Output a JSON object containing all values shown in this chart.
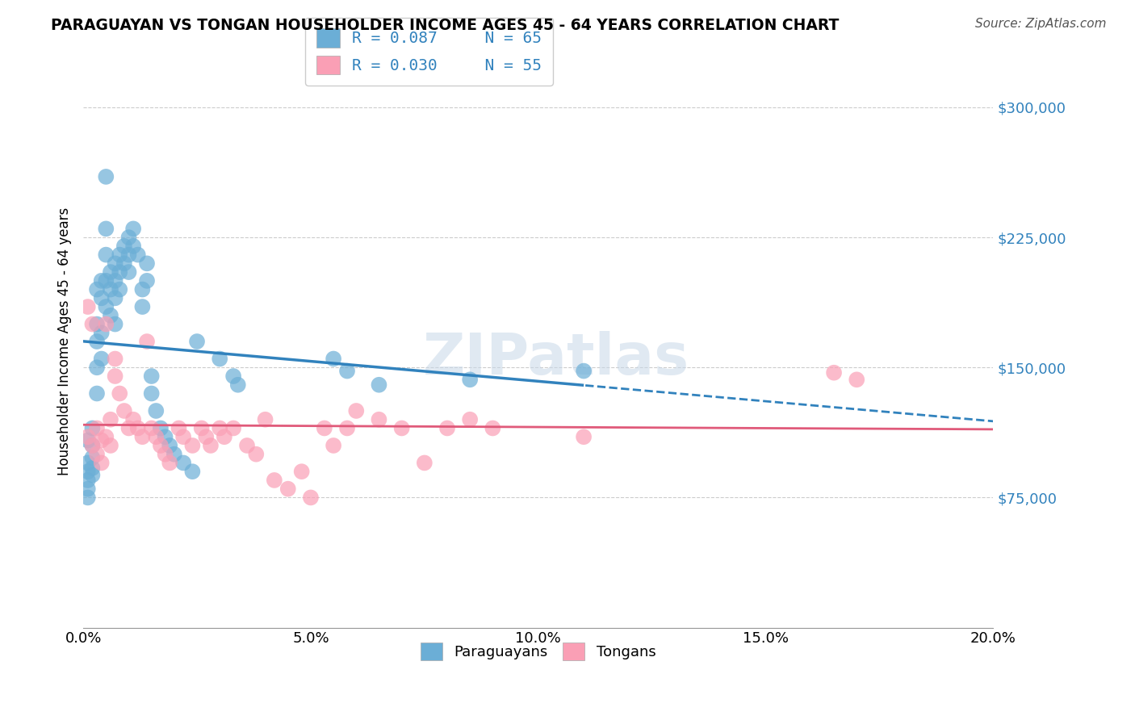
{
  "title": "PARAGUAYAN VS TONGAN HOUSEHOLDER INCOME AGES 45 - 64 YEARS CORRELATION CHART",
  "source": "Source: ZipAtlas.com",
  "xlabel_ticks": [
    "0.0%",
    "5.0%",
    "10.0%",
    "15.0%",
    "20.0%"
  ],
  "xlabel_tick_vals": [
    0.0,
    0.05,
    0.1,
    0.15,
    0.2
  ],
  "ylabel_ticks": [
    "$75,000",
    "$150,000",
    "$225,000",
    "$300,000"
  ],
  "ylabel_tick_vals": [
    75000,
    150000,
    225000,
    300000
  ],
  "xlim": [
    0.0,
    0.2
  ],
  "ylim": [
    0,
    330000
  ],
  "watermark": "ZIPatlas",
  "legend_blue_r": "R = 0.087",
  "legend_blue_n": "N = 65",
  "legend_pink_r": "R = 0.030",
  "legend_pink_n": "N = 55",
  "legend_label_blue": "Paraguayans",
  "legend_label_pink": "Tongans",
  "blue_color": "#6baed6",
  "pink_color": "#fa9fb5",
  "line_blue_color": "#3182bd",
  "line_pink_color": "#e05a7a",
  "paraguayan_x": [
    0.001,
    0.001,
    0.001,
    0.001,
    0.001,
    0.001,
    0.002,
    0.002,
    0.002,
    0.002,
    0.002,
    0.003,
    0.003,
    0.003,
    0.003,
    0.003,
    0.004,
    0.004,
    0.004,
    0.004,
    0.005,
    0.005,
    0.005,
    0.005,
    0.005,
    0.006,
    0.006,
    0.006,
    0.007,
    0.007,
    0.007,
    0.007,
    0.008,
    0.008,
    0.008,
    0.009,
    0.009,
    0.01,
    0.01,
    0.01,
    0.011,
    0.011,
    0.012,
    0.013,
    0.013,
    0.014,
    0.014,
    0.015,
    0.015,
    0.016,
    0.017,
    0.018,
    0.019,
    0.02,
    0.022,
    0.024,
    0.025,
    0.03,
    0.033,
    0.034,
    0.055,
    0.058,
    0.065,
    0.085,
    0.11
  ],
  "paraguayan_y": [
    108000,
    95000,
    90000,
    85000,
    80000,
    75000,
    115000,
    105000,
    98000,
    92000,
    88000,
    195000,
    175000,
    165000,
    150000,
    135000,
    200000,
    190000,
    170000,
    155000,
    260000,
    230000,
    215000,
    200000,
    185000,
    205000,
    195000,
    180000,
    210000,
    200000,
    190000,
    175000,
    215000,
    205000,
    195000,
    220000,
    210000,
    225000,
    215000,
    205000,
    230000,
    220000,
    215000,
    195000,
    185000,
    210000,
    200000,
    145000,
    135000,
    125000,
    115000,
    110000,
    105000,
    100000,
    95000,
    90000,
    165000,
    155000,
    145000,
    140000,
    155000,
    148000,
    140000,
    143000,
    148000
  ],
  "tongan_x": [
    0.001,
    0.001,
    0.002,
    0.002,
    0.003,
    0.003,
    0.004,
    0.004,
    0.005,
    0.005,
    0.006,
    0.006,
    0.007,
    0.007,
    0.008,
    0.009,
    0.01,
    0.011,
    0.012,
    0.013,
    0.014,
    0.015,
    0.016,
    0.017,
    0.018,
    0.019,
    0.021,
    0.022,
    0.024,
    0.026,
    0.027,
    0.028,
    0.03,
    0.031,
    0.033,
    0.036,
    0.038,
    0.04,
    0.042,
    0.045,
    0.048,
    0.05,
    0.053,
    0.055,
    0.058,
    0.06,
    0.065,
    0.07,
    0.075,
    0.08,
    0.085,
    0.09,
    0.11,
    0.165,
    0.17
  ],
  "tongan_y": [
    110000,
    185000,
    105000,
    175000,
    100000,
    115000,
    108000,
    95000,
    110000,
    175000,
    120000,
    105000,
    155000,
    145000,
    135000,
    125000,
    115000,
    120000,
    115000,
    110000,
    165000,
    115000,
    110000,
    105000,
    100000,
    95000,
    115000,
    110000,
    105000,
    115000,
    110000,
    105000,
    115000,
    110000,
    115000,
    105000,
    100000,
    120000,
    85000,
    80000,
    90000,
    75000,
    115000,
    105000,
    115000,
    125000,
    120000,
    115000,
    95000,
    115000,
    120000,
    115000,
    110000,
    147000,
    143000
  ]
}
